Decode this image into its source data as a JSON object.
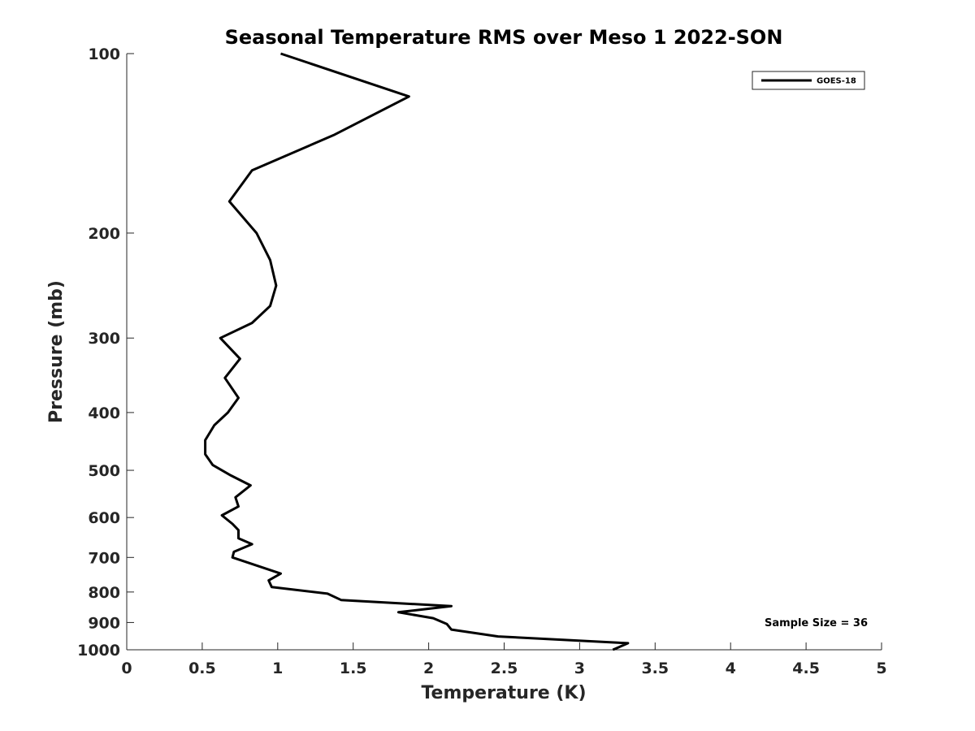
{
  "chart_data": {
    "type": "line",
    "title": "Seasonal Temperature RMS over Meso 1  2022-SON",
    "xlabel": "Temperature (K)",
    "ylabel": "Pressure (mb)",
    "xlim": [
      0,
      5
    ],
    "ylim": [
      100,
      1000
    ],
    "y_scale": "log",
    "y_reversed": true,
    "grid": false,
    "xticks": [
      0,
      0.5,
      1,
      1.5,
      2,
      2.5,
      3,
      3.5,
      4,
      4.5,
      5
    ],
    "xtick_labels": [
      "0",
      "0.5",
      "1",
      "1.5",
      "2",
      "2.5",
      "3",
      "3.5",
      "4",
      "4.5",
      "5"
    ],
    "yticks": [
      100,
      200,
      300,
      400,
      500,
      600,
      700,
      800,
      900,
      1000
    ],
    "ytick_labels": [
      "100",
      "200",
      "300",
      "400",
      "500",
      "600",
      "700",
      "800",
      "900",
      "1000"
    ],
    "legend_position": "top-right",
    "annotation": "Sample Size = 36",
    "series": [
      {
        "name": "GOES-18",
        "color": "#000000",
        "x": [
          1.02,
          1.87,
          1.37,
          0.83,
          0.68,
          0.86,
          0.95,
          0.99,
          0.95,
          0.83,
          0.62,
          0.75,
          0.65,
          0.74,
          0.67,
          0.58,
          0.52,
          0.52,
          0.57,
          0.69,
          0.82,
          0.72,
          0.74,
          0.63,
          0.7,
          0.74,
          0.74,
          0.83,
          0.71,
          0.7,
          1.02,
          0.94,
          0.96,
          1.33,
          1.42,
          2.15,
          1.8,
          2.03,
          2.12,
          2.15,
          2.46,
          3.32,
          3.22
        ],
        "y": [
          100,
          118,
          137,
          157,
          177,
          200,
          222,
          245,
          265,
          283,
          300,
          325,
          350,
          378,
          400,
          420,
          445,
          470,
          490,
          510,
          530,
          555,
          575,
          595,
          615,
          630,
          650,
          665,
          685,
          700,
          745,
          765,
          785,
          805,
          825,
          845,
          865,
          885,
          905,
          925,
          950,
          975,
          1000
        ]
      }
    ]
  }
}
